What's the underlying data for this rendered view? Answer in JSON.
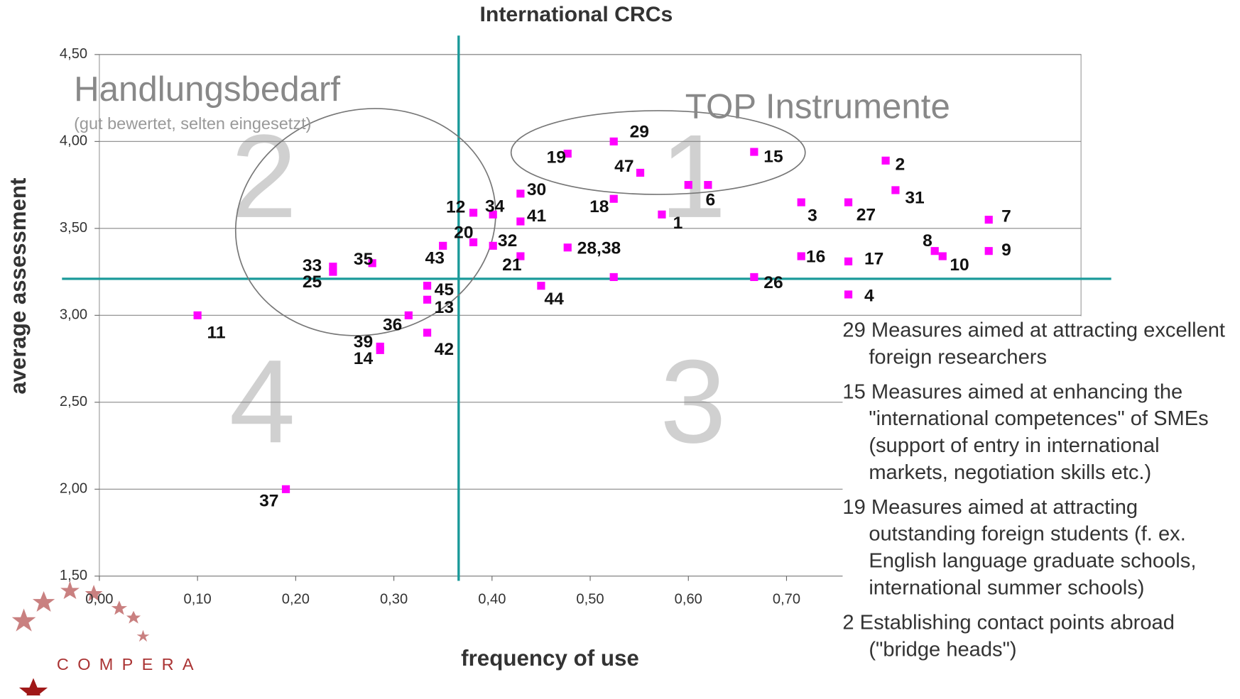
{
  "chart_data": {
    "type": "scatter",
    "title": "International CRCs",
    "x_label": "frequency of use",
    "y_label": "average assessment",
    "xlim": [
      0,
      1.0
    ],
    "ylim": [
      1.5,
      4.5
    ],
    "xticks": [
      {
        "value": 0,
        "label": "0,00"
      },
      {
        "value": 0.1,
        "label": "0,10"
      },
      {
        "value": 0.2,
        "label": "0,20"
      },
      {
        "value": 0.3,
        "label": "0,30"
      },
      {
        "value": 0.4,
        "label": "0,40"
      },
      {
        "value": 0.5,
        "label": "0,50"
      },
      {
        "value": 0.6,
        "label": "0,60"
      },
      {
        "value": 0.7,
        "label": "0,70"
      }
    ],
    "yticks": [
      {
        "value": 1.5,
        "label": "1,50"
      },
      {
        "value": 2.0,
        "label": "2,00"
      },
      {
        "value": 2.5,
        "label": "2,50"
      },
      {
        "value": 3.0,
        "label": "3,00"
      },
      {
        "value": 3.5,
        "label": "3,50"
      },
      {
        "value": 4.0,
        "label": "4,00"
      },
      {
        "value": 4.5,
        "label": "4,50"
      }
    ],
    "grid": true,
    "color": "#ff00ff",
    "reference_color": "#1a9a9a",
    "reference_lines": {
      "x": 0.366,
      "y": 3.21
    },
    "x": [
      0.524,
      0.477,
      0.551,
      0.667,
      0.801,
      0.811,
      0.6,
      0.62,
      0.524,
      0.573,
      0.715,
      0.763,
      0.906,
      0.381,
      0.401,
      0.429,
      0.429,
      0.381,
      0.401,
      0.35,
      0.429,
      0.477,
      0.851,
      0.906,
      0.859,
      0.715,
      0.763,
      0.667,
      0.524,
      0.763,
      0.238,
      0.238,
      0.278,
      0.334,
      0.334,
      0.45,
      0.315,
      0.334,
      0.286,
      0.286,
      0.1,
      0.19
    ],
    "values": [
      4.0,
      3.93,
      3.82,
      3.94,
      3.89,
      3.72,
      3.75,
      3.75,
      3.67,
      3.58,
      3.65,
      3.65,
      3.55,
      3.59,
      3.58,
      3.7,
      3.54,
      3.42,
      3.4,
      3.4,
      3.34,
      3.39,
      3.37,
      3.37,
      3.34,
      3.34,
      3.31,
      3.22,
      3.22,
      3.12,
      3.28,
      3.25,
      3.3,
      3.17,
      3.09,
      3.17,
      3.0,
      2.9,
      2.82,
      2.8,
      3.0,
      2.0
    ],
    "point_labels": [
      "29",
      "19",
      "47",
      "15",
      "2",
      "31",
      null,
      "6",
      "18",
      "1",
      "3",
      "27",
      "7",
      "12",
      "34",
      "30",
      "41",
      "20",
      "32",
      "43",
      "21",
      "28,38",
      "8",
      "9",
      "10",
      "16",
      "17",
      "26",
      null,
      "4",
      "33",
      "25",
      "35",
      "45",
      "13",
      "44",
      "36",
      "42",
      "39",
      "14",
      "11",
      "37"
    ],
    "annotations": {
      "top_left": "Handlungsbedarf",
      "top_left_sub": "(gut bewertet, selten eingesetzt)",
      "top_right": "TOP Instrumente",
      "quadrants": [
        "1",
        "2",
        "3",
        "4"
      ]
    },
    "notes": [
      "29 Measures aimed at attracting excellent foreign researchers",
      "15 Measures aimed at enhancing the \"international competences\" of SMEs (support of entry in international markets, negotiation skills etc.)",
      "19 Measures aimed at attracting outstanding foreign students (f. ex. English language graduate schools, international summer schools)",
      "2 Establishing contact points abroad (\"bridge heads\")"
    ],
    "logo": "COMPERA"
  }
}
